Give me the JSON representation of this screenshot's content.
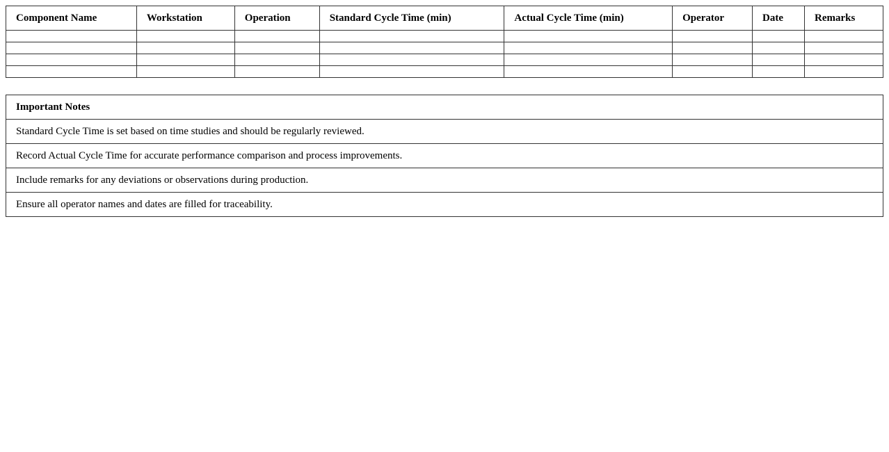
{
  "log_table": {
    "columns": [
      "Component Name",
      "Workstation",
      "Operation",
      "Standard Cycle Time (min)",
      "Actual Cycle Time (min)",
      "Operator",
      "Date",
      "Remarks"
    ],
    "rows": [
      [
        "",
        "",
        "",
        "",
        "",
        "",
        "",
        ""
      ],
      [
        "",
        "",
        "",
        "",
        "",
        "",
        "",
        ""
      ],
      [
        "",
        "",
        "",
        "",
        "",
        "",
        "",
        ""
      ],
      [
        "",
        "",
        "",
        "",
        "",
        "",
        "",
        ""
      ]
    ]
  },
  "notes": {
    "title": "Important Notes",
    "items": [
      "Standard Cycle Time is set based on time studies and should be regularly reviewed.",
      "Record Actual Cycle Time for accurate performance comparison and process improvements.",
      "Include remarks for any deviations or observations during production.",
      "Ensure all operator names and dates are filled for traceability."
    ]
  }
}
